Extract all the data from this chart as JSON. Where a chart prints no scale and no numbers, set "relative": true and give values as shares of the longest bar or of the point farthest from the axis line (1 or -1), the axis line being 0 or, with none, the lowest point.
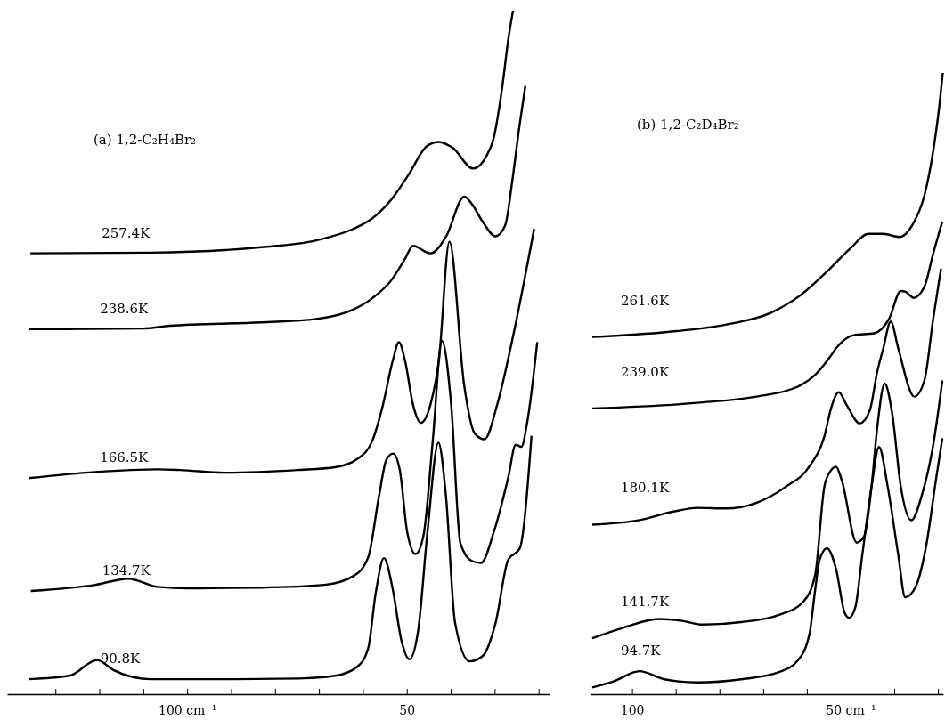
{
  "chart_data": [
    {
      "type": "line",
      "title": "(a)  1,2-C₂H₄Br₂",
      "relative": true,
      "xlim": [
        141,
        17.5
      ],
      "xticks": [
        {
          "value": 140,
          "label": null
        },
        {
          "value": 130,
          "label": null
        },
        {
          "value": 120,
          "label": null
        },
        {
          "value": 110,
          "label": null
        },
        {
          "value": 100,
          "label": "100 cm⁻¹"
        },
        {
          "value": 90,
          "label": null
        },
        {
          "value": 80,
          "label": null
        },
        {
          "value": 70,
          "label": null
        },
        {
          "value": 60,
          "label": null
        },
        {
          "value": 50,
          "label": "50"
        },
        {
          "value": 40,
          "label": null
        },
        {
          "value": 30,
          "label": null
        },
        {
          "value": 20,
          "label": null
        }
      ],
      "series": [
        {
          "name": "257.4K",
          "color": "#000000",
          "x": [
            135.7,
            108.3,
            83.1,
            70.6,
            62.1,
            57.9,
            53.6,
            49.6,
            45.4,
            42.7,
            39.5,
            34.9,
            31.9,
            30.2,
            28.4,
            26.8,
            25.8
          ],
          "values": [
            0.645,
            0.646,
            0.654,
            0.664,
            0.681,
            0.696,
            0.723,
            0.76,
            0.802,
            0.808,
            0.799,
            0.769,
            0.787,
            0.814,
            0.882,
            0.962,
            1
          ]
        },
        {
          "name": "238.6K",
          "color": "#000000",
          "x": [
            136.1,
            110.1,
            104,
            83.1,
            70.6,
            62.1,
            57.9,
            53.6,
            50.4,
            48.6,
            44.6,
            41.1,
            36.9,
            35.3,
            32.7,
            29.8,
            27.6,
            26,
            24.4,
            23
          ],
          "values": [
            0.534,
            0.535,
            0.539,
            0.544,
            0.549,
            0.563,
            0.579,
            0.605,
            0.637,
            0.656,
            0.645,
            0.669,
            0.728,
            0.718,
            0.691,
            0.67,
            0.686,
            0.75,
            0.829,
            0.89
          ]
        },
        {
          "name": "166.5K",
          "color": "#000000",
          "x": [
            136.1,
            121,
            106.7,
            101.6,
            91.5,
            74.8,
            66.3,
            61.3,
            57.9,
            55.4,
            53.2,
            51.8,
            50.4,
            48.6,
            46.8,
            44.6,
            42.7,
            40.3,
            36.9,
            34.5,
            32.3,
            29.4,
            25.6,
            21
          ],
          "values": [
            0.316,
            0.325,
            0.329,
            0.328,
            0.324,
            0.328,
            0.332,
            0.344,
            0.37,
            0.424,
            0.488,
            0.515,
            0.488,
            0.424,
            0.397,
            0.424,
            0.488,
            0.662,
            0.45,
            0.381,
            0.373,
            0.424,
            0.53,
            0.681
          ]
        },
        {
          "name": "134.7K",
          "color": "#000000",
          "x": [
            135.6,
            120.9,
            113.4,
            106.7,
            99.9,
            83.1,
            68.8,
            62.1,
            58.8,
            56.3,
            54.6,
            53.1,
            51.6,
            49.9,
            48,
            46.2,
            44.1,
            42,
            39.9,
            37.8,
            35.2,
            33.1,
            30.2,
            26.9,
            25.2,
            23.9,
            22.6,
            20.3
          ],
          "values": [
            0.151,
            0.16,
            0.169,
            0.157,
            0.155,
            0.156,
            0.16,
            0.173,
            0.2,
            0.291,
            0.344,
            0.352,
            0.328,
            0.237,
            0.205,
            0.232,
            0.37,
            0.517,
            0.424,
            0.221,
            0.195,
            0.192,
            0.237,
            0.317,
            0.365,
            0.362,
            0.397,
            0.515
          ]
        },
        {
          "name": "90.8K",
          "color": "#000000",
          "x": [
            136,
            126.8,
            120.5,
            116.7,
            108.3,
            91.5,
            74.7,
            66.3,
            61.3,
            58.8,
            57.1,
            55.2,
            53.3,
            51.2,
            49.4,
            47.4,
            45.3,
            42.8,
            41.1,
            39,
            35.7,
            32.7,
            29.8,
            26.9,
            24.3,
            21.6
          ],
          "values": [
            0.022,
            0.027,
            0.05,
            0.035,
            0.022,
            0.022,
            0.023,
            0.027,
            0.04,
            0.067,
            0.147,
            0.199,
            0.157,
            0.078,
            0.051,
            0.094,
            0.237,
            0.368,
            0.291,
            0.104,
            0.048,
            0.056,
            0.104,
            0.197,
            0.213,
            0.378
          ]
        }
      ]
    },
    {
      "type": "line",
      "title": "(b)  1,2-C₂D₄Br₂",
      "relative": true,
      "xlim": [
        109.5,
        28.8
      ],
      "xticks": [
        {
          "value": 100,
          "label": "100"
        },
        {
          "value": 90,
          "label": null
        },
        {
          "value": 80,
          "label": null
        },
        {
          "value": 70,
          "label": null
        },
        {
          "value": 60,
          "label": null
        },
        {
          "value": 50,
          "label": "50 cm⁻¹"
        },
        {
          "value": 40,
          "label": null
        },
        {
          "value": 30,
          "label": null
        }
      ],
      "series": [
        {
          "name": "261.6K",
          "color": "#000000",
          "x": [
            109.1,
            91.9,
            78.4,
            68.2,
            61.5,
            54.7,
            50,
            45.9,
            42.5,
            38.8,
            35.8,
            33.1,
            31.1,
            29.7,
            28.9
          ],
          "values": [
            0.575,
            0.583,
            0.595,
            0.614,
            0.642,
            0.685,
            0.718,
            0.741,
            0.741,
            0.736,
            0.756,
            0.803,
            0.874,
            0.946,
            1
          ]
        },
        {
          "name": "239.0K",
          "color": "#000000",
          "x": [
            109.1,
            85.1,
            71.6,
            62.1,
            58.1,
            54.7,
            53.3,
            49.3,
            44.6,
            41.2,
            38.5,
            37.5,
            35.5,
            33.1,
            31.1,
            29
          ],
          "values": [
            0.46,
            0.469,
            0.479,
            0.495,
            0.514,
            0.543,
            0.557,
            0.578,
            0.581,
            0.604,
            0.649,
            0.648,
            0.638,
            0.656,
            0.709,
            0.761
          ]
        },
        {
          "name": "180.1K",
          "color": "#000000",
          "x": [
            109.1,
            98.6,
            90.5,
            85.1,
            78.4,
            71.6,
            64.8,
            59.4,
            56,
            54.4,
            52.7,
            51,
            47.9,
            45.6,
            43.9,
            42.5,
            40.8,
            39.1,
            35.4,
            33.1,
            31.1,
            29.3
          ],
          "values": [
            0.273,
            0.28,
            0.294,
            0.3,
            0.299,
            0.308,
            0.334,
            0.367,
            0.415,
            0.462,
            0.486,
            0.467,
            0.436,
            0.457,
            0.519,
            0.557,
            0.6,
            0.557,
            0.479,
            0.505,
            0.604,
            0.685
          ]
        },
        {
          "name": "141.7K",
          "color": "#000000",
          "x": [
            109.1,
            102,
            93.9,
            88.5,
            83.8,
            75,
            66.2,
            60.8,
            58.1,
            56,
            54.7,
            53.3,
            52,
            48.6,
            46.9,
            45.2,
            43.9,
            42.2,
            40.5,
            38.5,
            36.1,
            33.7,
            31,
            29
          ],
          "values": [
            0.09,
            0.107,
            0.121,
            0.118,
            0.112,
            0.116,
            0.128,
            0.149,
            0.192,
            0.334,
            0.358,
            0.366,
            0.344,
            0.244,
            0.254,
            0.334,
            0.429,
            0.5,
            0.453,
            0.334,
            0.28,
            0.32,
            0.405,
            0.505
          ]
        },
        {
          "name": "94.7K",
          "color": "#000000",
          "x": [
            109.1,
            104.1,
            98.3,
            92.6,
            85.1,
            75,
            66.2,
            62.1,
            59.4,
            58.1,
            57.1,
            55.4,
            53.3,
            51.3,
            50.3,
            48.9,
            47.3,
            45.2,
            43.5,
            41.5,
            39.1,
            37.5,
            35.1,
            32.7,
            30.4,
            29
          ],
          "values": [
            0.011,
            0.021,
            0.037,
            0.024,
            0.019,
            0.024,
            0.036,
            0.054,
            0.097,
            0.168,
            0.216,
            0.235,
            0.201,
            0.13,
            0.123,
            0.14,
            0.225,
            0.334,
            0.398,
            0.334,
            0.225,
            0.156,
            0.173,
            0.239,
            0.348,
            0.412
          ]
        }
      ]
    }
  ]
}
